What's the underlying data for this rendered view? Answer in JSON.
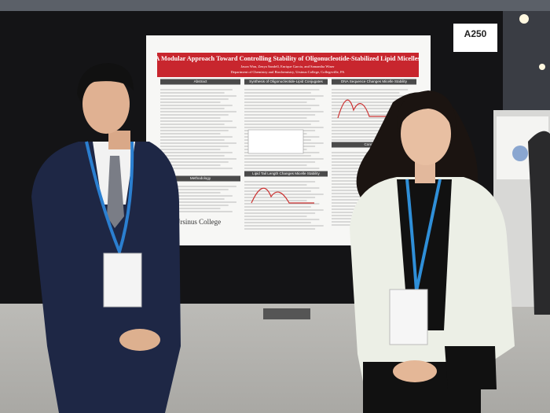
{
  "sign": {
    "label": "A250"
  },
  "poster": {
    "title": "A Modular Approach Toward Controlling Stability of Oligonucleotide-Stabilized Lipid Micelles",
    "authors": "Jason Wan, Zenya Sandell, Enrique Garcia, and Samantha Winer",
    "affiliation": "Department of Chemistry and Biochemistry, Ursinus College, Collegeville, PA",
    "sections": [
      "Abstract",
      "Synthesis of Oligonucleotide-Lipid Conjugates",
      "DNA Sequence Changes Micelle Stability",
      "Methodology",
      "Lipid Tail Length Changes Micelle Stability",
      "Conclusions"
    ],
    "logo": "Ursinus College"
  }
}
